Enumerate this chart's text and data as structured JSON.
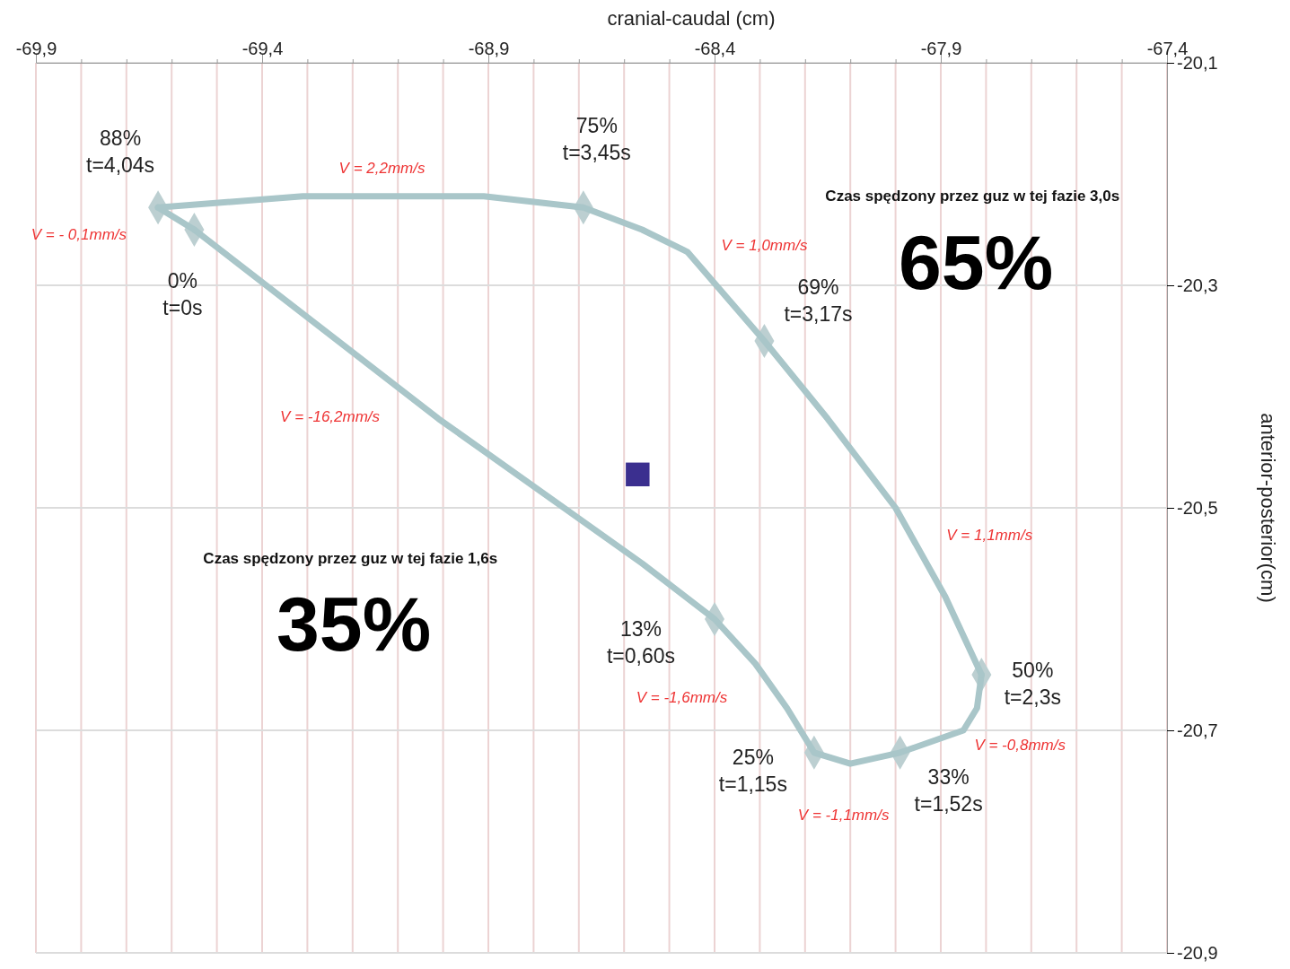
{
  "chart_data": {
    "type": "line",
    "xlabel": "cranial-caudal (cm)",
    "ylabel": "anterior-posterior(cm)",
    "xlim": [
      -69.9,
      -67.4
    ],
    "ylim": [
      -20.9,
      -20.1
    ],
    "xticks": [
      {
        "value": -69.9,
        "label": "-69,9"
      },
      {
        "value": -69.8,
        "label": null
      },
      {
        "value": -69.7,
        "label": null
      },
      {
        "value": -69.6,
        "label": null
      },
      {
        "value": -69.5,
        "label": null
      },
      {
        "value": -69.4,
        "label": "-69,4"
      },
      {
        "value": -69.3,
        "label": null
      },
      {
        "value": -69.2,
        "label": null
      },
      {
        "value": -69.1,
        "label": null
      },
      {
        "value": -69.0,
        "label": null
      },
      {
        "value": -68.9,
        "label": "-68,9"
      },
      {
        "value": -68.8,
        "label": null
      },
      {
        "value": -68.7,
        "label": null
      },
      {
        "value": -68.6,
        "label": null
      },
      {
        "value": -68.5,
        "label": null
      },
      {
        "value": -68.4,
        "label": "-68,4"
      },
      {
        "value": -68.3,
        "label": null
      },
      {
        "value": -68.2,
        "label": null
      },
      {
        "value": -68.1,
        "label": null
      },
      {
        "value": -68.0,
        "label": null
      },
      {
        "value": -67.9,
        "label": "-67,9"
      },
      {
        "value": -67.8,
        "label": null
      },
      {
        "value": -67.7,
        "label": null
      },
      {
        "value": -67.6,
        "label": null
      },
      {
        "value": -67.5,
        "label": null
      },
      {
        "value": -67.4,
        "label": "-67,4"
      }
    ],
    "yticks": [
      {
        "value": -20.1,
        "label": "-20,1"
      },
      {
        "value": -20.3,
        "label": "-20,3"
      },
      {
        "value": -20.5,
        "label": "-20,5"
      },
      {
        "value": -20.7,
        "label": "-20,7"
      },
      {
        "value": -20.9,
        "label": "-20,9"
      }
    ],
    "grid": true,
    "series": [
      {
        "color": "#a9c6c9",
        "marker": "none",
        "x": [
          -69.55,
          -69.01,
          -68.56,
          -68.4,
          -68.31,
          -68.24,
          -68.18,
          -68.1,
          -67.99,
          -67.85,
          -67.82,
          -67.81
        ],
        "values": [
          -20.25,
          -20.42,
          -20.55,
          -20.6,
          -20.64,
          -20.68,
          -20.72,
          -20.73,
          -20.72,
          -20.7,
          -20.68,
          -20.65
        ]
      },
      {
        "color": "#a9c6c9",
        "marker": "none",
        "x": [
          -67.81,
          -67.89,
          -68.0,
          -68.15,
          -68.29,
          -68.46,
          -68.56,
          -68.69,
          -68.91,
          -69.31,
          -69.63
        ],
        "values": [
          -20.65,
          -20.58,
          -20.5,
          -20.42,
          -20.35,
          -20.27,
          -20.25,
          -20.23,
          -20.22,
          -20.22,
          -20.23
        ]
      },
      {
        "color": "#a9c6c9",
        "marker": "none",
        "x": [
          -69.63,
          -69.55
        ],
        "values": [
          -20.23,
          -20.25
        ]
      },
      {
        "type": "scatter",
        "color": "#bccfd1",
        "marker": "diamond",
        "x": [
          -69.55,
          -68.4,
          -68.18,
          -67.99,
          -67.81,
          -68.29,
          -68.69,
          -69.63
        ],
        "values": [
          -20.25,
          -20.6,
          -20.72,
          -20.72,
          -20.65,
          -20.35,
          -20.23,
          -20.23
        ]
      },
      {
        "type": "scatter",
        "color": "#3b2f8f",
        "marker": "square",
        "x": [
          -68.57
        ],
        "values": [
          -20.47
        ]
      }
    ],
    "annotations": [
      {
        "text": "0%\nt=0s",
        "x": -69.55,
        "y": -20.25
      },
      {
        "text": "13%\nt=0,60s",
        "x": -68.4,
        "y": -20.6
      },
      {
        "text": "25%\nt=1,15s",
        "x": -68.18,
        "y": -20.72
      },
      {
        "text": "33%\nt=1,52s",
        "x": -67.99,
        "y": -20.72
      },
      {
        "text": "50%\nt=2,3s",
        "x": -67.81,
        "y": -20.65
      },
      {
        "text": "69%\nt=3,17s",
        "x": -68.29,
        "y": -20.35
      },
      {
        "text": "75%\nt=3,45s",
        "x": -68.69,
        "y": -20.23
      },
      {
        "text": "88%\nt=4,04s",
        "x": -69.63,
        "y": -20.23
      },
      "V = 2,2mm/s",
      "V = - 0,1mm/s",
      "V = 1,0mm/s",
      "V = -16,2mm/s",
      "V = 1,1mm/s",
      "V = -1,6mm/s",
      "V = -0,8mm/s",
      "V = -1,1mm/s",
      "Czas spędzony przez guz w tej fazie 3,0s",
      "65%",
      "Czas spędzony przez guz w tej fazie 1,6s",
      "35%"
    ]
  }
}
